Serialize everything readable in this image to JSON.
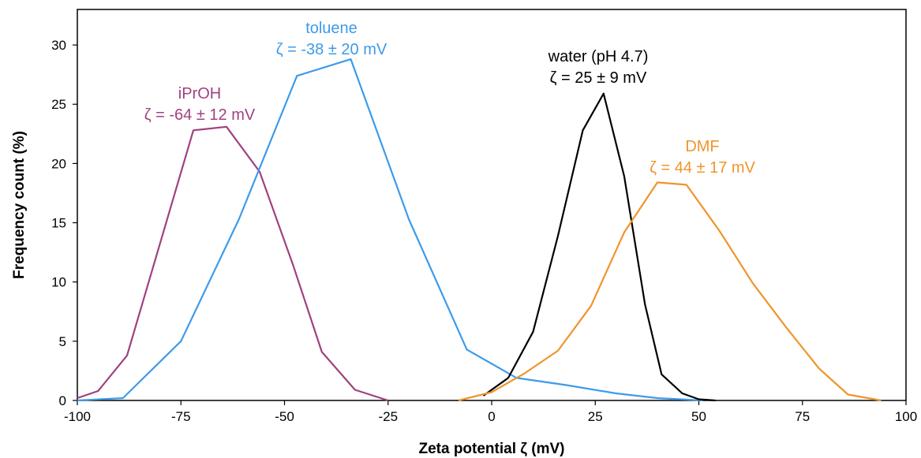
{
  "chart_data": {
    "type": "line",
    "title": "",
    "xlabel": "Zeta potential ζ (mV)",
    "ylabel": "Frequency count (%)",
    "xlim": [
      -100,
      100
    ],
    "ylim": [
      0,
      33
    ],
    "xticks": [
      -100,
      -75,
      -50,
      -25,
      0,
      25,
      50,
      75,
      100
    ],
    "yticks": [
      0,
      5,
      10,
      15,
      20,
      25,
      30
    ],
    "grid": false,
    "legend": "none",
    "series": [
      {
        "name": "iPrOH",
        "color": "#a0417f",
        "x": [
          -100,
          -95,
          -88,
          -72,
          -64,
          -56,
          -48,
          -41,
          -33,
          -25
        ],
        "y": [
          0.2,
          0.8,
          3.8,
          22.8,
          23.1,
          19.3,
          11.5,
          4.1,
          0.9,
          0
        ]
      },
      {
        "name": "toluene",
        "color": "#3d9bea",
        "x": [
          -100,
          -89,
          -75,
          -61,
          -47,
          -34,
          -20,
          -6,
          6,
          18,
          30,
          40,
          51
        ],
        "y": [
          0,
          0.2,
          5.0,
          15.3,
          27.4,
          28.8,
          15.3,
          4.3,
          1.9,
          1.3,
          0.6,
          0.2,
          0
        ]
      },
      {
        "name": "water (pH 4.7)",
        "color": "#000000",
        "x": [
          -2,
          4,
          10,
          16,
          22,
          27,
          32,
          37,
          41,
          46,
          50,
          54
        ],
        "y": [
          0.4,
          1.9,
          5.8,
          13.9,
          22.8,
          25.9,
          18.9,
          8.1,
          2.2,
          0.6,
          0.1,
          0
        ]
      },
      {
        "name": "DMF",
        "color": "#f0942a",
        "x": [
          -8,
          0,
          8,
          16,
          24,
          32,
          40,
          47,
          55,
          63,
          71,
          79,
          86,
          94
        ],
        "y": [
          0,
          0.7,
          2.3,
          4.2,
          8.0,
          14.2,
          18.4,
          18.2,
          14.3,
          9.9,
          6.2,
          2.7,
          0.5,
          0
        ]
      }
    ],
    "annotations": [
      {
        "series": "iPrOH",
        "lines": [
          "iPrOH",
          "ζ = -64 ± 12 mV"
        ]
      },
      {
        "series": "toluene",
        "lines": [
          "toluene",
          "ζ = -38 ± 20 mV"
        ]
      },
      {
        "series": "water (pH 4.7)",
        "lines": [
          "water (pH 4.7)",
          "ζ  = 25 ± 9 mV"
        ]
      },
      {
        "series": "DMF",
        "lines": [
          "DMF",
          "ζ = 44 ± 17 mV"
        ]
      }
    ]
  }
}
